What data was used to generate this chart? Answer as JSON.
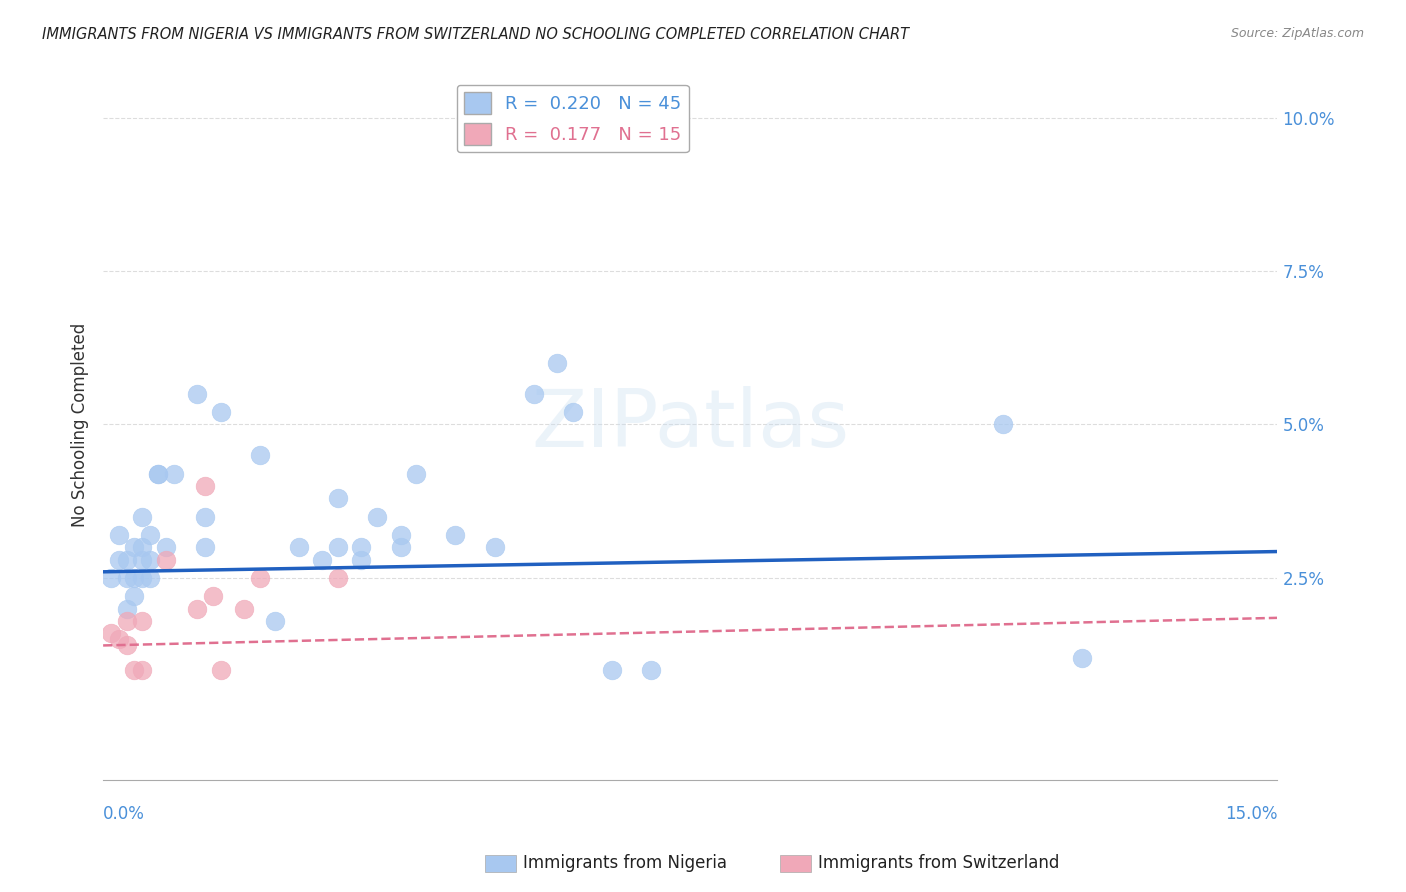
{
  "title": "IMMIGRANTS FROM NIGERIA VS IMMIGRANTS FROM SWITZERLAND NO SCHOOLING COMPLETED CORRELATION CHART",
  "source": "Source: ZipAtlas.com",
  "ylabel": "No Schooling Completed",
  "ytick_vals": [
    0.025,
    0.05,
    0.075,
    0.1
  ],
  "ytick_labels": [
    "2.5%",
    "5.0%",
    "7.5%",
    "10.0%"
  ],
  "xlim": [
    0.0,
    0.15
  ],
  "ylim": [
    -0.008,
    0.108
  ],
  "nigeria_color": "#a8c8f0",
  "switzerland_color": "#f0a8b8",
  "nigeria_line_color": "#2060c0",
  "switzerland_line_color": "#e07090",
  "nigeria_x": [
    0.001,
    0.002,
    0.002,
    0.003,
    0.003,
    0.003,
    0.004,
    0.004,
    0.004,
    0.005,
    0.005,
    0.005,
    0.005,
    0.006,
    0.006,
    0.006,
    0.007,
    0.007,
    0.008,
    0.009,
    0.012,
    0.013,
    0.013,
    0.015,
    0.02,
    0.022,
    0.025,
    0.028,
    0.03,
    0.03,
    0.033,
    0.033,
    0.035,
    0.038,
    0.038,
    0.04,
    0.045,
    0.05,
    0.055,
    0.058,
    0.06,
    0.065,
    0.07,
    0.115,
    0.125
  ],
  "nigeria_y": [
    0.025,
    0.028,
    0.032,
    0.02,
    0.025,
    0.028,
    0.022,
    0.025,
    0.03,
    0.025,
    0.028,
    0.03,
    0.035,
    0.025,
    0.028,
    0.032,
    0.042,
    0.042,
    0.03,
    0.042,
    0.055,
    0.03,
    0.035,
    0.052,
    0.045,
    0.018,
    0.03,
    0.028,
    0.03,
    0.038,
    0.028,
    0.03,
    0.035,
    0.03,
    0.032,
    0.042,
    0.032,
    0.03,
    0.055,
    0.06,
    0.052,
    0.01,
    0.01,
    0.05,
    0.012
  ],
  "switzerland_x": [
    0.001,
    0.002,
    0.003,
    0.003,
    0.004,
    0.005,
    0.005,
    0.008,
    0.012,
    0.013,
    0.014,
    0.015,
    0.018,
    0.02,
    0.03
  ],
  "switzerland_y": [
    0.016,
    0.015,
    0.014,
    0.018,
    0.01,
    0.01,
    0.018,
    0.028,
    0.02,
    0.04,
    0.022,
    0.01,
    0.02,
    0.025,
    0.025
  ],
  "nigeria_slope": 0.022,
  "nigeria_intercept": 0.026,
  "switzerland_slope": 0.03,
  "switzerland_intercept": 0.014,
  "watermark": "ZIPatlas",
  "background_color": "#ffffff",
  "grid_color": "#dddddd"
}
